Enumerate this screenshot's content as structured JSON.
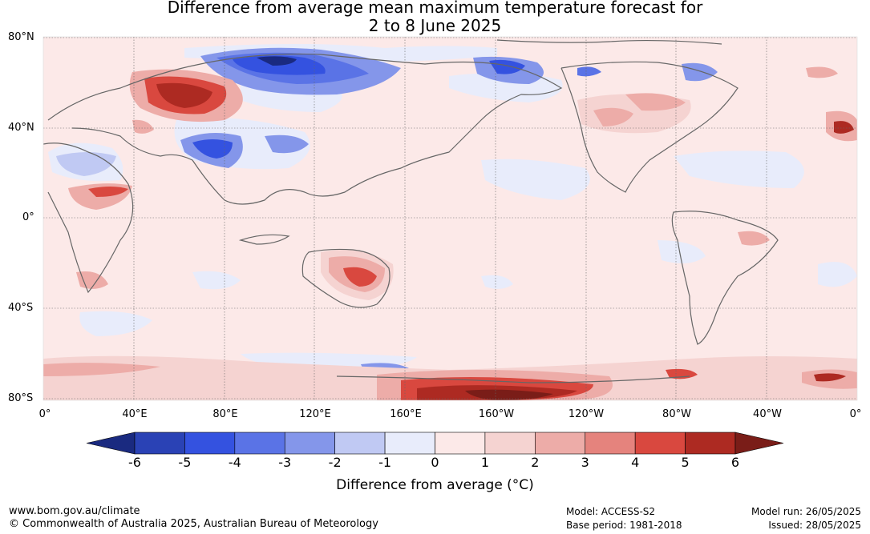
{
  "title_line1": "Difference from average mean maximum temperature forecast for",
  "title_line2": "2 to 8 June 2025",
  "map": {
    "lat_labels": [
      "80°N",
      "40°N",
      "0°",
      "40°S",
      "80°S"
    ],
    "lon_labels": [
      "0°",
      "40°E",
      "80°E",
      "120°E",
      "160°E",
      "160°W",
      "120°W",
      "80°W",
      "40°W",
      "0°"
    ]
  },
  "colorbar": {
    "label": "Difference from average (°C)",
    "ticks": [
      "-6",
      "-5",
      "-4",
      "-3",
      "-2",
      "-1",
      "0",
      "1",
      "2",
      "3",
      "4",
      "5",
      "6"
    ],
    "colors": [
      "#1a2a80",
      "#2a42b5",
      "#3452e0",
      "#5a73e6",
      "#8496ea",
      "#c0c9f3",
      "#e8ecfb",
      "#fce9e8",
      "#f5d3d1",
      "#edaca8",
      "#e5837d",
      "#d9483f",
      "#ad2a22",
      "#7a1d18"
    ]
  },
  "footer": {
    "url": "www.bom.gov.au/climate",
    "copyright": "© Commonwealth of Australia 2025, Australian Bureau of Meteorology",
    "model": "Model: ACCESS-S2",
    "base_period": "Base period: 1981-2018",
    "model_run": "Model run: 26/05/2025",
    "issued": "Issued: 28/05/2025"
  }
}
